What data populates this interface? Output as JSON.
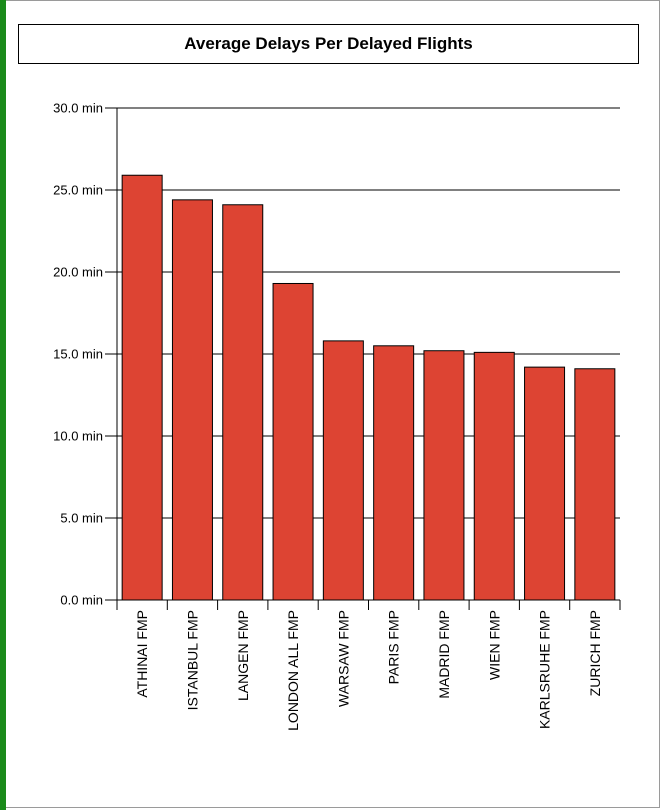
{
  "chart_data": {
    "type": "bar",
    "title": "Average Delays Per Delayed Flights",
    "xlabel": "",
    "ylabel": "",
    "ylim": [
      0,
      30
    ],
    "yticks": [
      "0.0 min",
      "5.0 min",
      "10.0 min",
      "15.0 min",
      "20.0 min",
      "25.0 min",
      "30.0 min"
    ],
    "ytick_values": [
      0,
      5,
      10,
      15,
      20,
      25,
      30
    ],
    "grid": true,
    "categories": [
      "ATHINAI FMP",
      "ISTANBUL FMP",
      "LANGEN FMP",
      "LONDON ALL FMP",
      "WARSAW FMP",
      "PARIS FMP",
      "MADRID FMP",
      "WIEN FMP",
      "KARLSRUHE FMP",
      "ZURICH FMP"
    ],
    "values": [
      25.9,
      24.4,
      24.1,
      19.3,
      15.8,
      15.5,
      15.2,
      15.1,
      14.2,
      14.1
    ],
    "bar_color": "#dd4433"
  }
}
